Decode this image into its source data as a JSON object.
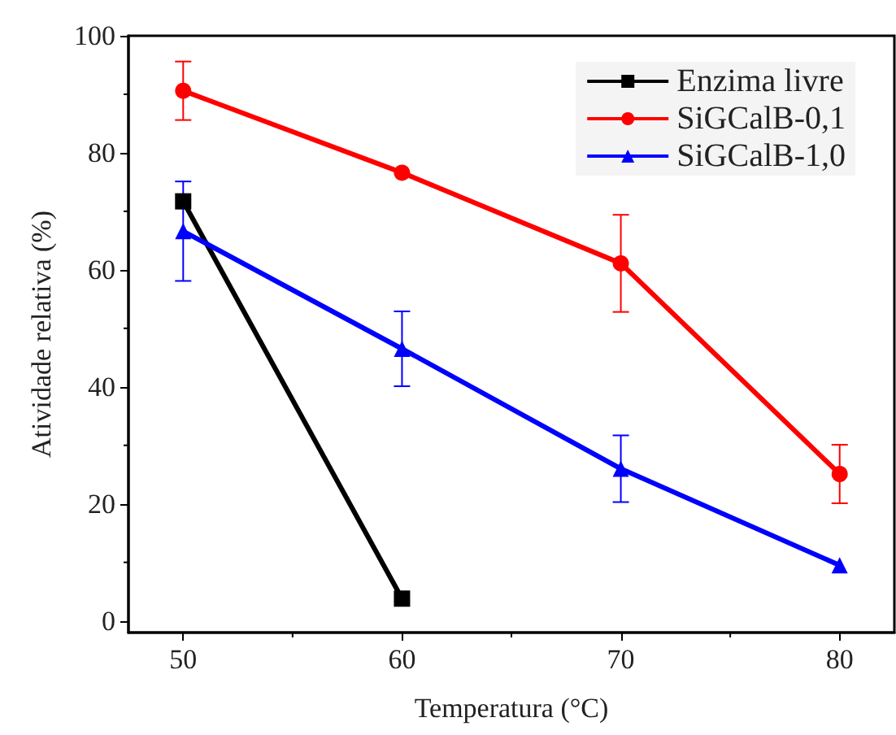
{
  "chart_data": {
    "type": "line",
    "xlabel": "Temperatura (°C)",
    "ylabel": "Atividade relativa (%)",
    "x": [
      50,
      60,
      70,
      80
    ],
    "xlim": [
      47.5,
      82.5
    ],
    "xticks": [
      50,
      60,
      70,
      80
    ],
    "ylim": [
      -2,
      100
    ],
    "yticks": [
      0,
      20,
      40,
      60,
      80,
      100
    ],
    "grid": false,
    "legend": "top right",
    "series": [
      {
        "name": "Enzima livre",
        "color": "#000000",
        "marker": "square",
        "x": [
          50,
          60
        ],
        "values": [
          71.7,
          3.8
        ]
      },
      {
        "name": "SiGCalB-0,1",
        "color": "#ff0000",
        "marker": "circle",
        "values": [
          90.6,
          76.6,
          61.1,
          25.1
        ],
        "errors": [
          5,
          null,
          8.3,
          5
        ]
      },
      {
        "name": "SiGCalB-1,0",
        "color": "#0000ff",
        "marker": "triangle",
        "values": [
          66.6,
          46.5,
          26,
          9.5
        ],
        "errors": [
          8.5,
          6.4,
          5.7,
          null
        ]
      }
    ]
  }
}
